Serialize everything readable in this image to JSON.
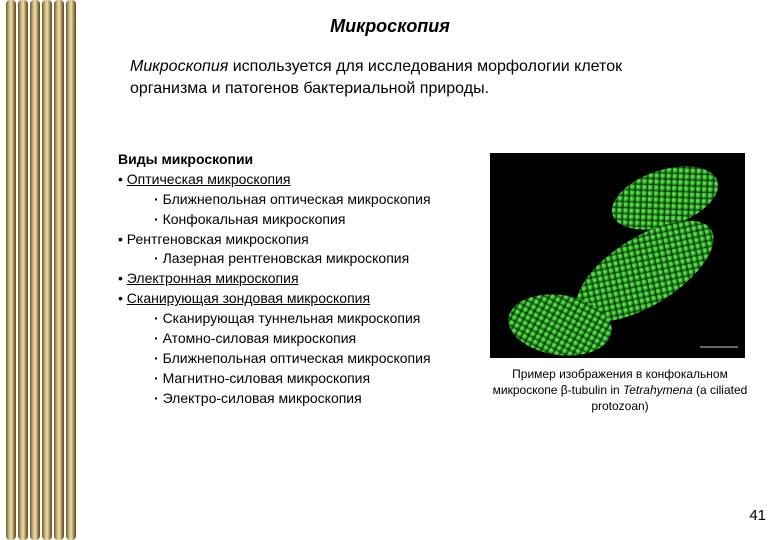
{
  "title": "Микроскопия",
  "intro_term": "Микроскопия",
  "intro_rest": " используется для исследования морфологии клеток организма и патогенов бактериальной природы.",
  "list_heading": "Виды микроскопии",
  "items": [
    {
      "label": "Оптическая микроскопия",
      "underline": true,
      "children": [
        "Ближнепольная оптическая микроскопия",
        "Конфокальная микроскопия"
      ]
    },
    {
      "label": "Рентгеновская микроскопия",
      "underline": false,
      "children": [
        "Лазерная рентгеновская микроскопия"
      ]
    },
    {
      "label": "Электронная микроскопия",
      "underline": true,
      "children": []
    },
    {
      "label": "Сканирующая зондовая микроскопия",
      "underline": true,
      "children": [
        "Сканирующая туннельная микроскопия",
        "Атомно-силовая микроскопия",
        "Ближнепольная оптическая микроскопия",
        "Магнитно-силовая микроскопия",
        "Электро-силовая микроскопия"
      ]
    }
  ],
  "caption_pre": "Пример изображения в конфокальном микроскопе β-tubulin in ",
  "caption_ital": "Tetrahymena",
  "caption_post": " (a ciliated protozoan)",
  "page_number": "41",
  "colors": {
    "text": "#000000",
    "sidebar_base": "#a88b4e",
    "sidebar_light": "#d6c28a",
    "sidebar_dark": "#6e5a2a",
    "fluor_green": "#3fd53a",
    "fluor_dark": "#0b2b08",
    "bg": "#ffffff"
  },
  "fonts": {
    "title_size": 18,
    "body_size": 16,
    "list_size": 14,
    "caption_size": 12
  }
}
